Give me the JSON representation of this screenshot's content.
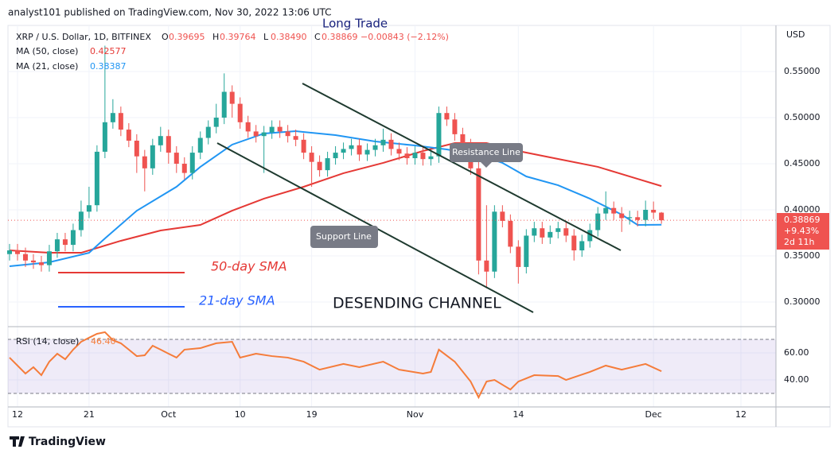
{
  "header": "analyst101 published on TradingView.com, Nov 30, 2022 13:06 UTC",
  "footer": "TradingView",
  "chart_data": [
    {
      "type": "candlestick",
      "symbol": "XRP / U.S. Dollar, 1D, BITFINEX",
      "ohlc_legend": [
        {
          "k": "O",
          "v": "0.39695"
        },
        {
          "k": "H",
          "v": "0.39764"
        },
        {
          "k": "L",
          "v": "0.38490"
        },
        {
          "k": "C",
          "v": "0.38869"
        }
      ],
      "change": "−0.00843 (−2.12%)",
      "axis_unit": "USD",
      "last_price_label": "0.38869",
      "last_change_label": "+9.43%",
      "countdown": "2d 11h",
      "annotations": [
        "Long Trade",
        "Resistance Line",
        "Support Line",
        "50-day SMA",
        "21-day SMA",
        "DESENDING CHANNEL"
      ],
      "up_color": "#26a69a",
      "down_color": "#ef5350",
      "xlim": [
        -1.2,
        95.4
      ],
      "xticks": [
        {
          "value": 0,
          "label": "12"
        },
        {
          "value": 9,
          "label": "21"
        },
        {
          "value": 19,
          "label": "Oct"
        },
        {
          "value": 28,
          "label": "10"
        },
        {
          "value": 37,
          "label": "19"
        },
        {
          "value": 50,
          "label": "Nov"
        },
        {
          "value": 63,
          "label": "14"
        },
        {
          "value": 80,
          "label": "Dec"
        },
        {
          "value": 91,
          "label": "12"
        }
      ],
      "ylim": [
        0.275,
        0.6
      ],
      "yticks": [
        {
          "value": 0.3,
          "label": "0.30000"
        },
        {
          "value": 0.35,
          "label": "0.35000"
        },
        {
          "value": 0.4,
          "label": "0.40000"
        },
        {
          "value": 0.45,
          "label": "0.45000"
        },
        {
          "value": 0.5,
          "label": "0.50000"
        },
        {
          "value": 0.55,
          "label": "0.55000"
        }
      ],
      "grid": true,
      "x": [
        -1,
        0,
        1,
        2,
        3,
        4,
        5,
        6,
        7,
        8,
        9,
        10,
        11,
        12,
        13,
        14,
        15,
        16,
        17,
        18,
        19,
        20,
        21,
        22,
        23,
        24,
        25,
        26,
        27,
        28,
        29,
        30,
        31,
        32,
        33,
        34,
        35,
        36,
        37,
        38,
        39,
        40,
        41,
        42,
        43,
        44,
        45,
        46,
        47,
        48,
        49,
        50,
        51,
        52,
        53,
        54,
        55,
        56,
        57,
        58,
        59,
        60,
        61,
        62,
        63,
        64,
        65,
        66,
        67,
        68,
        69,
        70,
        71,
        72,
        73,
        74,
        75,
        76,
        77,
        78,
        79,
        80,
        81
      ],
      "ohlc": [
        [
          0.352,
          0.363,
          0.345,
          0.356
        ],
        [
          0.356,
          0.363,
          0.345,
          0.352
        ],
        [
          0.352,
          0.359,
          0.338,
          0.345
        ],
        [
          0.345,
          0.352,
          0.336,
          0.343
        ],
        [
          0.343,
          0.35,
          0.333,
          0.34
        ],
        [
          0.34,
          0.362,
          0.333,
          0.355
        ],
        [
          0.355,
          0.375,
          0.348,
          0.368
        ],
        [
          0.368,
          0.375,
          0.355,
          0.362
        ],
        [
          0.362,
          0.385,
          0.355,
          0.378
        ],
        [
          0.378,
          0.41,
          0.371,
          0.398
        ],
        [
          0.398,
          0.425,
          0.391,
          0.405
        ],
        [
          0.405,
          0.47,
          0.398,
          0.463
        ],
        [
          0.463,
          0.578,
          0.456,
          0.495
        ],
        [
          0.495,
          0.52,
          0.488,
          0.505
        ],
        [
          0.505,
          0.512,
          0.48,
          0.487
        ],
        [
          0.487,
          0.494,
          0.468,
          0.475
        ],
        [
          0.475,
          0.482,
          0.44,
          0.458
        ],
        [
          0.458,
          0.465,
          0.42,
          0.445
        ],
        [
          0.445,
          0.477,
          0.438,
          0.47
        ],
        [
          0.47,
          0.49,
          0.463,
          0.48
        ],
        [
          0.48,
          0.487,
          0.45,
          0.462
        ],
        [
          0.462,
          0.469,
          0.44,
          0.45
        ],
        [
          0.45,
          0.457,
          0.433,
          0.44
        ],
        [
          0.44,
          0.469,
          0.433,
          0.462
        ],
        [
          0.462,
          0.485,
          0.455,
          0.478
        ],
        [
          0.478,
          0.497,
          0.471,
          0.49
        ],
        [
          0.49,
          0.515,
          0.483,
          0.5
        ],
        [
          0.5,
          0.548,
          0.493,
          0.528
        ],
        [
          0.528,
          0.535,
          0.5,
          0.515
        ],
        [
          0.515,
          0.522,
          0.488,
          0.495
        ],
        [
          0.495,
          0.502,
          0.478,
          0.485
        ],
        [
          0.485,
          0.492,
          0.473,
          0.48
        ],
        [
          0.48,
          0.491,
          0.44,
          0.484
        ],
        [
          0.484,
          0.497,
          0.477,
          0.49
        ],
        [
          0.49,
          0.497,
          0.478,
          0.485
        ],
        [
          0.485,
          0.492,
          0.473,
          0.48
        ],
        [
          0.48,
          0.487,
          0.469,
          0.476
        ],
        [
          0.476,
          0.483,
          0.455,
          0.462
        ],
        [
          0.462,
          0.469,
          0.425,
          0.452
        ],
        [
          0.452,
          0.459,
          0.436,
          0.443
        ],
        [
          0.443,
          0.463,
          0.436,
          0.456
        ],
        [
          0.456,
          0.469,
          0.449,
          0.462
        ],
        [
          0.462,
          0.473,
          0.455,
          0.466
        ],
        [
          0.466,
          0.477,
          0.459,
          0.47
        ],
        [
          0.47,
          0.477,
          0.453,
          0.46
        ],
        [
          0.46,
          0.472,
          0.453,
          0.465
        ],
        [
          0.465,
          0.477,
          0.458,
          0.47
        ],
        [
          0.47,
          0.488,
          0.463,
          0.476
        ],
        [
          0.476,
          0.483,
          0.459,
          0.466
        ],
        [
          0.466,
          0.473,
          0.454,
          0.461
        ],
        [
          0.461,
          0.468,
          0.449,
          0.456
        ],
        [
          0.456,
          0.469,
          0.449,
          0.462
        ],
        [
          0.462,
          0.469,
          0.448,
          0.455
        ],
        [
          0.455,
          0.465,
          0.448,
          0.458
        ],
        [
          0.458,
          0.512,
          0.451,
          0.505
        ],
        [
          0.505,
          0.512,
          0.491,
          0.498
        ],
        [
          0.498,
          0.505,
          0.475,
          0.482
        ],
        [
          0.482,
          0.489,
          0.463,
          0.47
        ],
        [
          0.47,
          0.477,
          0.438,
          0.445
        ],
        [
          0.445,
          0.452,
          0.33,
          0.345
        ],
        [
          0.345,
          0.405,
          0.315,
          0.333
        ],
        [
          0.333,
          0.405,
          0.326,
          0.398
        ],
        [
          0.398,
          0.405,
          0.381,
          0.388
        ],
        [
          0.388,
          0.395,
          0.353,
          0.36
        ],
        [
          0.36,
          0.367,
          0.32,
          0.338
        ],
        [
          0.338,
          0.379,
          0.331,
          0.372
        ],
        [
          0.372,
          0.387,
          0.365,
          0.38
        ],
        [
          0.38,
          0.387,
          0.363,
          0.37
        ],
        [
          0.37,
          0.383,
          0.363,
          0.376
        ],
        [
          0.376,
          0.387,
          0.369,
          0.38
        ],
        [
          0.38,
          0.387,
          0.365,
          0.372
        ],
        [
          0.372,
          0.379,
          0.345,
          0.356
        ],
        [
          0.356,
          0.373,
          0.349,
          0.366
        ],
        [
          0.366,
          0.385,
          0.359,
          0.378
        ],
        [
          0.378,
          0.403,
          0.371,
          0.396
        ],
        [
          0.396,
          0.42,
          0.389,
          0.402
        ],
        [
          0.402,
          0.409,
          0.389,
          0.396
        ],
        [
          0.396,
          0.403,
          0.376,
          0.391
        ],
        [
          0.391,
          0.399,
          0.384,
          0.392
        ],
        [
          0.392,
          0.399,
          0.382,
          0.389
        ],
        [
          0.389,
          0.41,
          0.382,
          0.4
        ],
        [
          0.4,
          0.409,
          0.39,
          0.397
        ],
        [
          0.39695,
          0.39764,
          0.3849,
          0.38869
        ]
      ],
      "series": [
        {
          "name": "MA (50, close)",
          "color": "#e53935",
          "x": [
            -1,
            4,
            8,
            13,
            18,
            23,
            27,
            31,
            36,
            41,
            46,
            51,
            55,
            59,
            63,
            68,
            73,
            78,
            81
          ],
          "values": [
            0.356,
            0.3534,
            0.3534,
            0.3664,
            0.3776,
            0.3836,
            0.3991,
            0.4121,
            0.425,
            0.4397,
            0.4509,
            0.4638,
            0.4724,
            0.4724,
            0.4638,
            0.4552,
            0.4466,
            0.4336,
            0.42577
          ]
        },
        {
          "name": "MA (21, close)",
          "color": "#2196f3",
          "x": [
            -1,
            4,
            9,
            11,
            15,
            20,
            23,
            27,
            31,
            35,
            40,
            45,
            50,
            54,
            58,
            61,
            64,
            68,
            72,
            76,
            78,
            81
          ],
          "values": [
            0.3388,
            0.3431,
            0.3534,
            0.369,
            0.399,
            0.425,
            0.4466,
            0.4707,
            0.4828,
            0.4853,
            0.481,
            0.4741,
            0.4698,
            0.4655,
            0.4595,
            0.4509,
            0.4362,
            0.4267,
            0.4121,
            0.3948,
            0.3836,
            0.38387
          ]
        }
      ]
    },
    {
      "type": "line",
      "xlim": [
        -1.2,
        95.4
      ],
      "ylim": [
        21.2,
        78.8
      ],
      "yticks": [
        {
          "value": 40,
          "label": "40.00"
        },
        {
          "value": 60,
          "label": "60.00"
        }
      ],
      "band": [
        30,
        70
      ],
      "series": [
        {
          "name": "RSI (14, close)",
          "color": "#f57c3a",
          "x": [
            -1,
            1,
            2,
            3,
            4,
            5,
            6,
            7,
            8,
            9,
            10,
            11,
            12,
            13,
            14,
            15,
            16,
            17,
            18,
            19,
            20,
            21,
            23,
            25,
            27,
            28,
            30,
            32,
            34,
            36,
            38,
            41,
            43,
            46,
            48,
            51,
            52,
            53,
            55,
            57,
            58,
            59,
            60,
            62,
            63,
            65,
            68,
            69,
            72,
            74,
            76,
            79,
            81
          ],
          "values": [
            56.5,
            44.7,
            49.4,
            43.5,
            53.5,
            59.4,
            55.3,
            62.4,
            68.2,
            71.2,
            74.1,
            75.3,
            69.4,
            67.1,
            62.4,
            57.6,
            58.2,
            65.3,
            62.4,
            59.4,
            56.5,
            62.4,
            63.5,
            67.1,
            68.2,
            56.5,
            59.4,
            57.6,
            56.5,
            53.5,
            47.6,
            51.8,
            49.4,
            53.5,
            47.6,
            44.7,
            45.9,
            62.4,
            53.5,
            38.8,
            27.1,
            38.8,
            40,
            32.9,
            38.8,
            43.5,
            42.9,
            40,
            45.9,
            50.6,
            47.6,
            51.8,
            46.4
          ],
          "value_labels": {
            "52": "46.40"
          }
        }
      ]
    }
  ]
}
